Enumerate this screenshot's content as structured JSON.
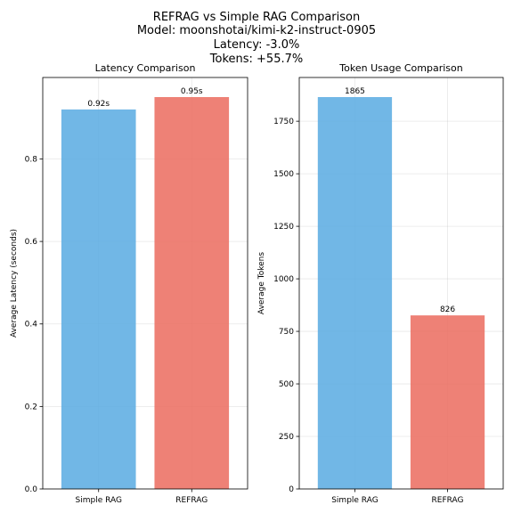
{
  "figure": {
    "title_lines": [
      "REFRAG vs Simple RAG Comparison",
      "Model: moonshotai/kimi-k2-instruct-0905",
      "Latency: -3.0%",
      "Tokens: +55.7%"
    ]
  },
  "chart_data": [
    {
      "type": "bar",
      "title": "Latency Comparison",
      "xlabel": "",
      "ylabel": "Average Latency (seconds)",
      "categories": [
        "Simple RAG",
        "REFRAG"
      ],
      "values": [
        0.92,
        0.95
      ],
      "data_labels": [
        "0.92s",
        "0.95s"
      ],
      "colors": [
        "#5dade2",
        "#ec7063"
      ],
      "ylim": [
        0,
        0.9975
      ],
      "yticks": [
        0.0,
        0.2,
        0.4,
        0.6,
        0.8
      ],
      "ytick_labels": [
        "0.0",
        "0.2",
        "0.4",
        "0.6",
        "0.8"
      ],
      "grid": true
    },
    {
      "type": "bar",
      "title": "Token Usage Comparison",
      "xlabel": "",
      "ylabel": "Average Tokens",
      "categories": [
        "Simple RAG",
        "REFRAG"
      ],
      "values": [
        1865,
        826
      ],
      "data_labels": [
        "1865",
        "826"
      ],
      "colors": [
        "#5dade2",
        "#ec7063"
      ],
      "ylim": [
        0,
        1958.25
      ],
      "yticks": [
        0,
        250,
        500,
        750,
        1000,
        1250,
        1500,
        1750
      ],
      "ytick_labels": [
        "0",
        "250",
        "500",
        "750",
        "1000",
        "1250",
        "1500",
        "1750"
      ],
      "grid": true
    }
  ]
}
